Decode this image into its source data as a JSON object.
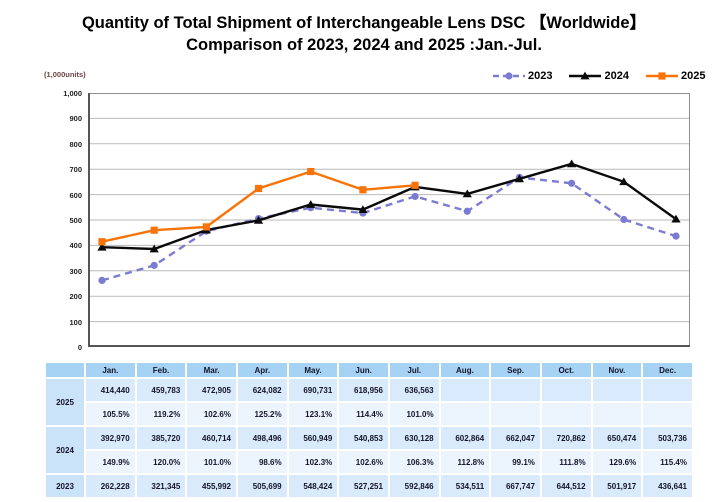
{
  "title": {
    "line1": "Quantity of Total Shipment of Interchangeable Lens DSC 【Worldwide】",
    "line2": "Comparison of 2023, 2024 and 2025 :Jan.-Jul."
  },
  "chart_data": {
    "type": "line",
    "unit_label": "(1,000units)",
    "categories": [
      "Jan.",
      "Feb.",
      "Mar.",
      "Apr.",
      "May.",
      "Jun.",
      "Jul.",
      "Aug.",
      "Sep.",
      "Oct.",
      "Nov.",
      "Dec."
    ],
    "ylim": [
      0,
      1000
    ],
    "ytick_step": 100,
    "grid": true,
    "legend_position": "top-right",
    "series": [
      {
        "name": "2023",
        "color": "#7b7bd2",
        "style": "dashed",
        "marker": "circle",
        "values": [
          262.228,
          321.345,
          455.992,
          505.699,
          548.424,
          527.251,
          592.846,
          534.511,
          667.747,
          644.512,
          501.917,
          436.641
        ]
      },
      {
        "name": "2024",
        "color": "#0a0a0a",
        "style": "solid",
        "marker": "triangle",
        "values": [
          392.97,
          385.72,
          460.714,
          498.496,
          560.949,
          540.853,
          630.128,
          602.864,
          662.047,
          720.862,
          650.474,
          503.736
        ]
      },
      {
        "name": "2025",
        "color": "#f87408",
        "style": "solid",
        "marker": "square",
        "values": [
          414.44,
          459.783,
          472.905,
          624.082,
          690.731,
          618.956,
          636.563,
          null,
          null,
          null,
          null,
          null
        ]
      }
    ]
  },
  "table": {
    "months": [
      "Jan.",
      "Feb.",
      "Mar.",
      "Apr.",
      "May.",
      "Jun.",
      "Jul.",
      "Aug.",
      "Sep.",
      "Oct.",
      "Nov.",
      "Dec."
    ],
    "rows": [
      {
        "year": "2025",
        "values": [
          "414,440",
          "459,783",
          "472,905",
          "624,082",
          "690,731",
          "618,956",
          "636,563",
          "",
          "",
          "",
          "",
          ""
        ],
        "percents": [
          "105.5%",
          "119.2%",
          "102.6%",
          "125.2%",
          "123.1%",
          "114.4%",
          "101.0%",
          "",
          "",
          "",
          "",
          ""
        ]
      },
      {
        "year": "2024",
        "values": [
          "392,970",
          "385,720",
          "460,714",
          "498,496",
          "560,949",
          "540,853",
          "630,128",
          "602,864",
          "662,047",
          "720,862",
          "650,474",
          "503,736"
        ],
        "percents": [
          "149.9%",
          "120.0%",
          "101.0%",
          "98.6%",
          "102.3%",
          "102.6%",
          "106.3%",
          "112.8%",
          "99.1%",
          "111.8%",
          "129.6%",
          "115.4%"
        ]
      },
      {
        "year": "2023",
        "values": [
          "262,228",
          "321,345",
          "455,992",
          "505,699",
          "548,424",
          "527,251",
          "592,846",
          "534,511",
          "667,747",
          "644,512",
          "501,917",
          "436,641"
        ]
      }
    ]
  }
}
